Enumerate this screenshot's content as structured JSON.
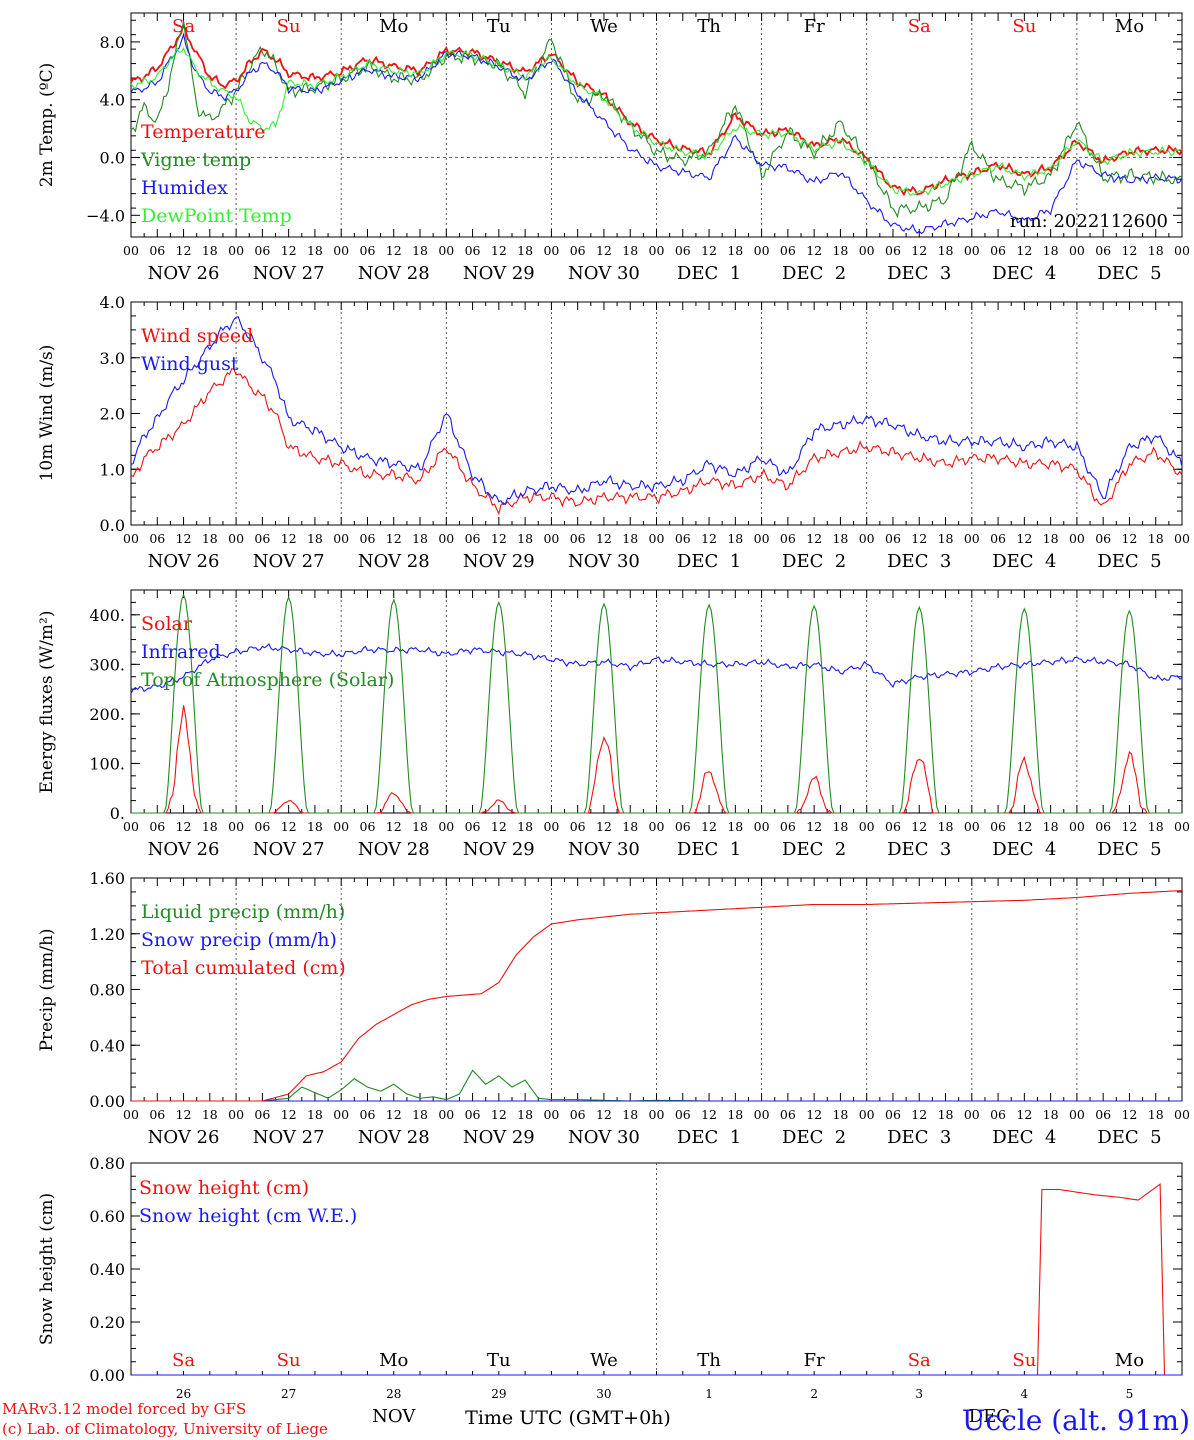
{
  "meta": {
    "run": "run: 2022112600",
    "model": "MARv3.12 model forced by GFS",
    "copyright": "(c) Lab. of Climatology, University of Liege",
    "station": "Uccle (alt. 91m)",
    "xlabel": "Time UTC (GMT+0h)",
    "month_labels": [
      "NOV",
      "DEC"
    ]
  },
  "days": {
    "weekdays": [
      "Sa",
      "Su",
      "Mo",
      "Tu",
      "We",
      "Th",
      "Fr",
      "Sa",
      "Su",
      "Mo"
    ],
    "weekend_flags": [
      true,
      true,
      false,
      false,
      false,
      false,
      false,
      true,
      true,
      false
    ],
    "dates": [
      "NOV 26",
      "NOV 27",
      "NOV 28",
      "NOV 29",
      "NOV 30",
      "DEC  1",
      "DEC  2",
      "DEC  3",
      "DEC  4",
      "DEC  5"
    ],
    "day_numbers": [
      "26",
      "27",
      "28",
      "29",
      "30",
      "1",
      "2",
      "3",
      "4",
      "5"
    ],
    "hour_ticks": [
      "00",
      "06",
      "12",
      "18"
    ],
    "final_tick": "00"
  },
  "colors": {
    "red": "#ee1111",
    "green": "#228b22",
    "blue": "#1a1aee",
    "lightgreen": "#33ee33",
    "grid": "#333333"
  },
  "chart_data": [
    {
      "type": "line",
      "ylabel": "2m Temp. (ºC)",
      "ylim": [
        -5.5,
        10
      ],
      "yticks": [
        8.0,
        4.0,
        0.0,
        -4.0
      ],
      "ytick_labels": [
        "8.0",
        "4.0",
        "0.0",
        "−4.0"
      ],
      "zero_line": true,
      "legend": [
        "Temperature",
        "Vigne temp",
        "Humidex",
        "DewPoint Temp"
      ],
      "series": [
        {
          "name": "Temperature",
          "color": "red",
          "x_hours": [
            0,
            3,
            6,
            9,
            12,
            15,
            18,
            21,
            24,
            27,
            30,
            33,
            36,
            42,
            48,
            54,
            60,
            66,
            72,
            78,
            84,
            90,
            96,
            102,
            108,
            114,
            120,
            126,
            132,
            138,
            144,
            150,
            156,
            162,
            168,
            174,
            180,
            186,
            192,
            198,
            204,
            210,
            216,
            222,
            228,
            234,
            240
          ],
          "y": [
            5.2,
            5.6,
            6.2,
            7.5,
            8.9,
            7.2,
            5.6,
            5.0,
            5.3,
            6.5,
            7.4,
            6.8,
            5.8,
            5.5,
            5.9,
            6.8,
            6.3,
            6.0,
            7.4,
            7.3,
            6.6,
            5.9,
            7.2,
            5.2,
            4.3,
            2.4,
            1.2,
            0.6,
            0.3,
            2.9,
            1.6,
            1.9,
            0.8,
            1.3,
            -0.1,
            -2.1,
            -2.4,
            -1.6,
            -1.1,
            -0.5,
            -1.2,
            -0.7,
            1.1,
            -0.3,
            0.4,
            0.5,
            0.5
          ]
        },
        {
          "name": "Vigne temp",
          "color": "green",
          "x_hours": [
            0,
            3,
            6,
            9,
            12,
            15,
            18,
            21,
            24,
            27,
            30,
            33,
            36,
            42,
            48,
            54,
            60,
            66,
            72,
            78,
            84,
            90,
            96,
            102,
            108,
            114,
            120,
            126,
            132,
            138,
            144,
            150,
            156,
            162,
            168,
            174,
            180,
            186,
            192,
            198,
            204,
            210,
            216,
            222,
            228,
            234,
            240
          ],
          "y": [
            1.8,
            3.5,
            2.4,
            5.6,
            9.6,
            3.5,
            2.6,
            3.4,
            4.6,
            6.2,
            7.6,
            6.4,
            4.6,
            4.8,
            5.4,
            6.3,
            5.5,
            5.4,
            7.0,
            6.9,
            6.4,
            4.5,
            8.2,
            3.8,
            4.4,
            2.2,
            0.4,
            -0.2,
            0.4,
            3.7,
            -1.3,
            1.8,
            0.3,
            2.4,
            -0.1,
            -3.6,
            -3.5,
            -2.9,
            0.9,
            -1.6,
            -2.1,
            -1.3,
            2.5,
            -1.4,
            -1.2,
            -1.4,
            -1.6
          ]
        },
        {
          "name": "Humidex",
          "color": "blue",
          "x_hours": [
            0,
            3,
            6,
            9,
            12,
            15,
            18,
            21,
            24,
            27,
            30,
            33,
            36,
            42,
            48,
            54,
            60,
            66,
            72,
            78,
            84,
            90,
            96,
            102,
            108,
            114,
            120,
            126,
            132,
            138,
            144,
            150,
            156,
            162,
            168,
            174,
            180,
            186,
            192,
            198,
            204,
            210,
            216,
            222,
            228,
            234,
            240
          ],
          "y": [
            4.5,
            4.8,
            5.2,
            6.8,
            8.2,
            5.8,
            4.6,
            4.2,
            4.6,
            5.8,
            6.5,
            6.0,
            4.8,
            4.6,
            5.3,
            6.1,
            5.6,
            5.5,
            7.2,
            7.0,
            6.3,
            5.3,
            6.8,
            4.4,
            2.5,
            0.6,
            -0.6,
            -1.0,
            -1.4,
            1.4,
            -0.5,
            -0.7,
            -1.7,
            -1.0,
            -3.0,
            -4.7,
            -5.1,
            -4.6,
            -4.2,
            -3.7,
            -4.4,
            -3.6,
            -0.2,
            -1.2,
            -1.6,
            -1.4,
            -1.5
          ]
        },
        {
          "name": "DewPoint Temp",
          "color": "lightgreen",
          "x_hours": [
            0,
            3,
            6,
            9,
            12,
            15,
            18,
            21,
            24,
            27,
            30,
            33,
            36,
            42,
            48,
            54,
            60,
            66,
            72,
            78,
            84,
            90,
            96,
            102,
            108,
            114,
            120,
            126,
            132,
            138,
            144,
            150,
            156,
            162,
            168,
            174,
            180,
            186,
            192,
            198,
            204,
            210,
            216,
            222,
            228,
            234,
            240
          ],
          "y": [
            5.0,
            5.2,
            5.6,
            6.8,
            7.6,
            6.0,
            5.2,
            4.6,
            4.2,
            2.6,
            2.0,
            2.2,
            5.2,
            5.0,
            5.6,
            6.5,
            6.0,
            5.8,
            7.2,
            7.1,
            6.4,
            5.6,
            6.9,
            5.0,
            4.1,
            2.2,
            1.0,
            0.4,
            0.1,
            2.1,
            1.6,
            1.7,
            0.6,
            1.1,
            -0.3,
            -2.2,
            -2.5,
            -1.8,
            -1.2,
            -0.6,
            -1.3,
            -0.8,
            1.2,
            -0.3,
            0.3,
            0.4,
            0.4
          ]
        }
      ]
    },
    {
      "type": "line",
      "ylabel": "10m Wind (m/s)",
      "ylim": [
        0,
        4
      ],
      "yticks": [
        4.0,
        3.0,
        2.0,
        1.0,
        0.0
      ],
      "ytick_labels": [
        "4.0",
        "3.0",
        "2.0",
        "1.0",
        "0.0"
      ],
      "legend": [
        "Wind speed",
        "Wind gust"
      ],
      "series": [
        {
          "name": "Wind speed",
          "color": "red",
          "x_hours": [
            0,
            3,
            6,
            9,
            12,
            15,
            18,
            21,
            24,
            27,
            30,
            33,
            36,
            42,
            48,
            54,
            60,
            66,
            72,
            78,
            84,
            90,
            96,
            102,
            108,
            114,
            120,
            126,
            132,
            138,
            144,
            150,
            156,
            162,
            168,
            174,
            180,
            186,
            192,
            198,
            204,
            210,
            216,
            222,
            228,
            234,
            240
          ],
          "y": [
            0.8,
            1.2,
            1.4,
            1.6,
            1.8,
            2.1,
            2.4,
            2.6,
            2.8,
            2.5,
            2.3,
            2.0,
            1.4,
            1.2,
            1.1,
            0.9,
            0.9,
            0.8,
            1.4,
            0.7,
            0.3,
            0.5,
            0.5,
            0.4,
            0.5,
            0.5,
            0.5,
            0.6,
            0.8,
            0.7,
            0.9,
            0.7,
            1.2,
            1.3,
            1.4,
            1.3,
            1.2,
            1.1,
            1.2,
            1.2,
            1.1,
            1.1,
            1.0,
            0.3,
            1.1,
            1.3,
            0.9
          ]
        },
        {
          "name": "Wind gust",
          "color": "blue",
          "x_hours": [
            0,
            3,
            6,
            9,
            12,
            15,
            18,
            21,
            24,
            27,
            30,
            33,
            36,
            42,
            48,
            54,
            60,
            66,
            72,
            78,
            84,
            90,
            96,
            102,
            108,
            114,
            120,
            126,
            132,
            138,
            144,
            150,
            156,
            162,
            168,
            174,
            180,
            186,
            192,
            198,
            204,
            210,
            216,
            222,
            228,
            234,
            240
          ],
          "y": [
            1.1,
            1.6,
            1.9,
            2.3,
            2.6,
            2.9,
            3.2,
            3.5,
            3.7,
            3.4,
            3.0,
            2.6,
            1.9,
            1.7,
            1.4,
            1.2,
            1.1,
            1.0,
            2.0,
            0.9,
            0.4,
            0.6,
            0.7,
            0.6,
            0.8,
            0.7,
            0.7,
            0.8,
            1.1,
            0.9,
            1.2,
            0.9,
            1.7,
            1.8,
            1.9,
            1.8,
            1.6,
            1.5,
            1.5,
            1.5,
            1.4,
            1.5,
            1.4,
            0.5,
            1.4,
            1.6,
            1.1
          ]
        }
      ]
    },
    {
      "type": "line",
      "ylabel": "Energy fluxes (W/m²)",
      "ylim": [
        0,
        450
      ],
      "yticks": [
        400,
        300,
        200,
        100,
        0
      ],
      "ytick_labels": [
        "400.",
        "300.",
        "200.",
        "100.",
        "0."
      ],
      "legend": [
        "Solar",
        "Infrared",
        "Top of Atmosphere (Solar)"
      ],
      "series": [
        {
          "name": "Solar",
          "color": "red",
          "daily_peak": [
            195,
            25,
            40,
            25,
            155,
            85,
            70,
            115,
            105,
            115
          ]
        },
        {
          "name": "Infrared",
          "color": "blue",
          "x_hours": [
            0,
            6,
            12,
            18,
            24,
            30,
            36,
            42,
            48,
            54,
            60,
            66,
            72,
            78,
            84,
            90,
            96,
            102,
            108,
            114,
            120,
            126,
            132,
            138,
            144,
            150,
            156,
            162,
            168,
            174,
            180,
            186,
            192,
            198,
            204,
            210,
            216,
            222,
            228,
            234,
            240
          ],
          "y": [
            248,
            255,
            275,
            310,
            325,
            335,
            330,
            322,
            320,
            330,
            328,
            330,
            320,
            330,
            325,
            320,
            310,
            300,
            305,
            295,
            310,
            305,
            300,
            300,
            305,
            295,
            300,
            285,
            300,
            260,
            275,
            280,
            285,
            295,
            300,
            305,
            310,
            305,
            300,
            270,
            275
          ]
        },
        {
          "name": "Top of Atmosphere (Solar)",
          "color": "green",
          "daily_peak": [
            440,
            435,
            430,
            425,
            422,
            420,
            418,
            415,
            412,
            408
          ]
        }
      ]
    },
    {
      "type": "line",
      "ylabel": "Precip (mm/h)",
      "ylim": [
        0,
        1.6
      ],
      "yticks": [
        1.6,
        1.2,
        0.8,
        0.4,
        0.0
      ],
      "ytick_labels": [
        "1.60",
        "1.20",
        "0.80",
        "0.40",
        "0.00"
      ],
      "legend": [
        "Liquid precip (mm/h)",
        "Snow precip (mm/h)",
        "Total cumulated (cm)"
      ],
      "series": [
        {
          "name": "Liquid precip (mm/h)",
          "color": "green",
          "x_hours": [
            0,
            30,
            36,
            39,
            42,
            45,
            48,
            51,
            54,
            57,
            60,
            63,
            66,
            69,
            72,
            75,
            78,
            81,
            84,
            87,
            90,
            93,
            96,
            102,
            108,
            114,
            120,
            132,
            144,
            168,
            192,
            216,
            240
          ],
          "y": [
            0,
            0,
            0.02,
            0.1,
            0.06,
            0.02,
            0.08,
            0.16,
            0.1,
            0.07,
            0.12,
            0.05,
            0.02,
            0.03,
            0.01,
            0.05,
            0.22,
            0.12,
            0.18,
            0.1,
            0.15,
            0.02,
            0.01,
            0.01,
            0.005,
            0,
            0.005,
            0,
            0,
            0,
            0,
            0,
            0
          ]
        },
        {
          "name": "Snow precip (mm/h)",
          "color": "blue",
          "x_hours": [
            0,
            240
          ],
          "y": [
            0,
            0
          ]
        },
        {
          "name": "Total cumulated (cm)",
          "color": "red",
          "x_hours": [
            0,
            30,
            36,
            40,
            44,
            48,
            52,
            56,
            60,
            64,
            68,
            72,
            76,
            80,
            84,
            88,
            92,
            96,
            102,
            108,
            114,
            120,
            132,
            144,
            156,
            168,
            180,
            192,
            204,
            216,
            228,
            240
          ],
          "y": [
            0,
            0,
            0.05,
            0.18,
            0.21,
            0.28,
            0.45,
            0.55,
            0.62,
            0.69,
            0.73,
            0.75,
            0.76,
            0.77,
            0.85,
            1.05,
            1.18,
            1.27,
            1.3,
            1.32,
            1.34,
            1.35,
            1.37,
            1.39,
            1.41,
            1.41,
            1.42,
            1.43,
            1.44,
            1.46,
            1.49,
            1.51
          ]
        }
      ]
    },
    {
      "type": "line",
      "ylabel": "Snow height (cm)",
      "ylim": [
        0,
        0.8
      ],
      "yticks": [
        0.8,
        0.6,
        0.4,
        0.2,
        0.0
      ],
      "ytick_labels": [
        "0.80",
        "0.60",
        "0.40",
        "0.20",
        "0.00"
      ],
      "legend": [
        "Snow height (cm)",
        "Snow height (cm W.E.)"
      ],
      "series": [
        {
          "name": "Snow height (cm)",
          "color": "red",
          "x_hours": [
            0,
            207,
            207.1,
            212,
            216,
            220,
            226,
            230,
            235,
            236,
            240
          ],
          "y": [
            0,
            0,
            0.7,
            0.7,
            0.69,
            0.68,
            0.67,
            0.66,
            0.72,
            0.0,
            0.0
          ]
        },
        {
          "name": "Snow height (cm W.E.)",
          "color": "blue",
          "x_hours": [
            0,
            240
          ],
          "y": [
            0,
            0
          ]
        }
      ]
    }
  ]
}
